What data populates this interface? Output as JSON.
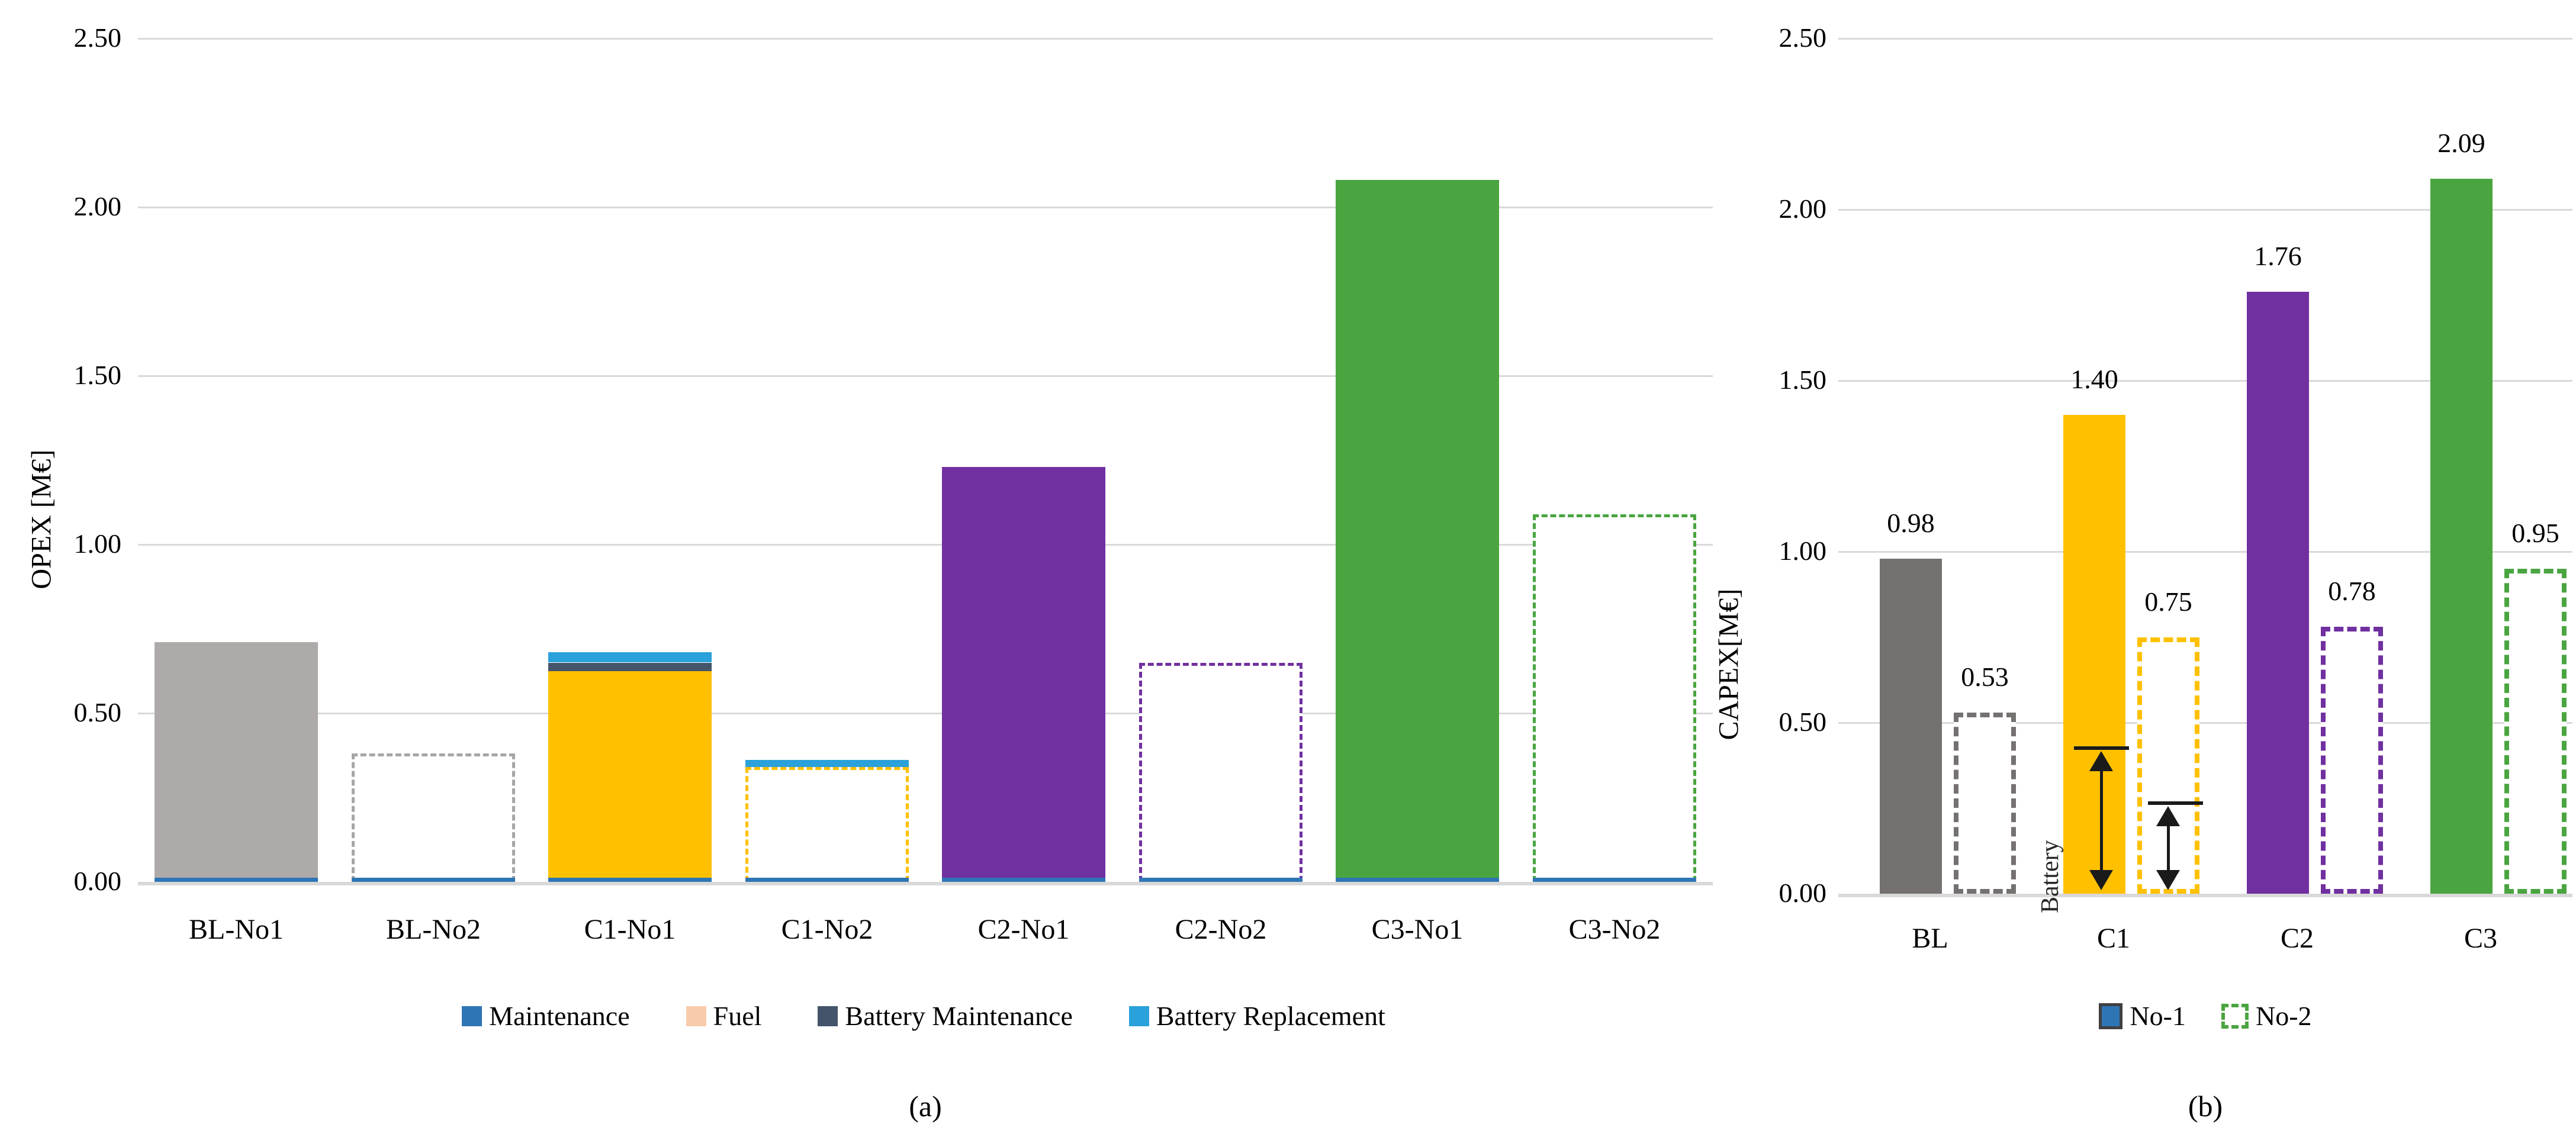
{
  "colors": {
    "gridline": "#d9d9d9",
    "axisline": "#d9d9d9",
    "maintenance_blue": "#2e75b6",
    "fuel_peach": "#f8cbad",
    "battery_maintenance_navy": "#44546a",
    "battery_replacement_lightblue": "#2aa1da",
    "gray_a": "#aeaaaa",
    "gray_b": "#767171",
    "yellow": "#ffc000",
    "purple": "#7030a0",
    "green": "#4aa540",
    "annotation_black": "#1a1a1a"
  },
  "chart_data": [
    {
      "type": "bar",
      "id": "opex",
      "y_title": "OPEX [M€]",
      "caption": "(a)",
      "ylim": [
        0,
        2.5
      ],
      "grid": true,
      "ytick_labels": [
        "2.50",
        "2.00",
        "1.50",
        "1.00",
        "0.50",
        "0.00"
      ],
      "ytick_values": [
        2.5,
        2.0,
        1.5,
        1.0,
        0.5,
        0.0
      ],
      "categories": [
        "BL-No1",
        "BL-No2",
        "C1-No1",
        "C1-No2",
        "C2-No1",
        "C2-No2",
        "C3-No1",
        "C3-No2"
      ],
      "legend_position": "bottom",
      "legend": [
        {
          "label": "Maintenance",
          "color": "#2e75b6",
          "swatch": "solid"
        },
        {
          "label": "Fuel",
          "color": "#f8cbad",
          "swatch": "solid"
        },
        {
          "label": "Battery Maintenance",
          "color": "#44546a",
          "swatch": "solid"
        },
        {
          "label": "Battery Replacement",
          "color": "#2aa1da",
          "swatch": "solid"
        }
      ],
      "bars": [
        {
          "label": "BL-No1",
          "style": "solid",
          "color": "#aeaaaa",
          "total": 0.71,
          "stack": [
            {
              "name": "Maintenance",
              "color": "#2e75b6",
              "value": 0.012
            },
            {
              "name": "Fuel",
              "color": "#aeaaaa",
              "value": 0.698
            }
          ]
        },
        {
          "label": "BL-No2",
          "style": "dashed",
          "color": "#a6a6a6",
          "outline": 0.38,
          "stack": [
            {
              "name": "Maintenance",
              "color": "#2e75b6",
              "value": 0.012
            }
          ]
        },
        {
          "label": "C1-No1",
          "style": "solid",
          "color": "#ffc000",
          "total": 0.68,
          "stack": [
            {
              "name": "Maintenance",
              "color": "#2e75b6",
              "value": 0.012
            },
            {
              "name": "Fuel",
              "color": "#ffc000",
              "value": 0.613
            },
            {
              "name": "Battery Maintenance",
              "color": "#44546a",
              "value": 0.025
            },
            {
              "name": "Battery Replacement",
              "color": "#2aa1da",
              "value": 0.03
            }
          ]
        },
        {
          "label": "C1-No2",
          "style": "dashed",
          "color": "#ffc000",
          "outline": 0.34,
          "top_band": {
            "name": "Battery Replacement",
            "color": "#2aa1da",
            "value": 0.022
          },
          "stack": [
            {
              "name": "Maintenance",
              "color": "#2e75b6",
              "value": 0.012
            }
          ]
        },
        {
          "label": "C2-No1",
          "style": "solid",
          "color": "#7030a0",
          "total": 1.23,
          "stack": [
            {
              "name": "Maintenance",
              "color": "#2e75b6",
              "value": 0.012
            },
            {
              "name": "Fuel",
              "color": "#7030a0",
              "value": 1.218
            }
          ]
        },
        {
          "label": "C2-No2",
          "style": "dashed",
          "color": "#7030a0",
          "outline": 0.65,
          "stack": [
            {
              "name": "Maintenance",
              "color": "#2e75b6",
              "value": 0.012
            }
          ]
        },
        {
          "label": "C3-No1",
          "style": "solid",
          "color": "#4aa540",
          "total": 2.08,
          "stack": [
            {
              "name": "Maintenance",
              "color": "#2e75b6",
              "value": 0.012
            },
            {
              "name": "Fuel",
              "color": "#4aa540",
              "value": 2.068
            }
          ]
        },
        {
          "label": "C3-No2",
          "style": "dashed",
          "color": "#4aa540",
          "outline": 1.09,
          "stack": [
            {
              "name": "Maintenance",
              "color": "#2e75b6",
              "value": 0.012
            }
          ]
        }
      ]
    },
    {
      "type": "bar",
      "id": "capex",
      "y_title": "CAPEX[M€]",
      "caption": "(b)",
      "ylim": [
        0,
        2.5
      ],
      "grid": true,
      "ytick_labels": [
        "2.50",
        "2.00",
        "1.50",
        "1.00",
        "0.50",
        "0.00"
      ],
      "ytick_values": [
        2.5,
        2.0,
        1.5,
        1.0,
        0.5,
        0.0
      ],
      "categories": [
        "BL",
        "C1",
        "C2",
        "C3"
      ],
      "legend_position": "bottom",
      "legend": [
        {
          "label": "No-1",
          "color": "#2e75b6",
          "swatch": "solid-bordered"
        },
        {
          "label": "No-2",
          "color": "#4aa540",
          "swatch": "dashed"
        }
      ],
      "groups": [
        {
          "category": "BL",
          "no1": {
            "value": 0.98,
            "value_label": "0.98",
            "style": "solid",
            "color": "#767171"
          },
          "no2": {
            "value": 0.53,
            "value_label": "0.53",
            "style": "dashed",
            "color": "#767171"
          }
        },
        {
          "category": "C1",
          "no1": {
            "value": 1.4,
            "value_label": "1.40",
            "style": "solid",
            "color": "#ffc000",
            "marker": {
              "value": 0.43,
              "label": "Battery"
            }
          },
          "no2": {
            "value": 0.75,
            "value_label": "0.75",
            "style": "dashed",
            "color": "#ffc000",
            "marker": {
              "value": 0.27,
              "label": ""
            }
          }
        },
        {
          "category": "C2",
          "no1": {
            "value": 1.76,
            "value_label": "1.76",
            "style": "solid",
            "color": "#7030a0"
          },
          "no2": {
            "value": 0.78,
            "value_label": "0.78",
            "style": "dashed",
            "color": "#7030a0"
          }
        },
        {
          "category": "C3",
          "no1": {
            "value": 2.09,
            "value_label": "2.09",
            "style": "solid",
            "color": "#4aa540"
          },
          "no2": {
            "value": 0.95,
            "value_label": "0.95",
            "style": "dashed",
            "color": "#4aa540"
          }
        }
      ]
    }
  ]
}
